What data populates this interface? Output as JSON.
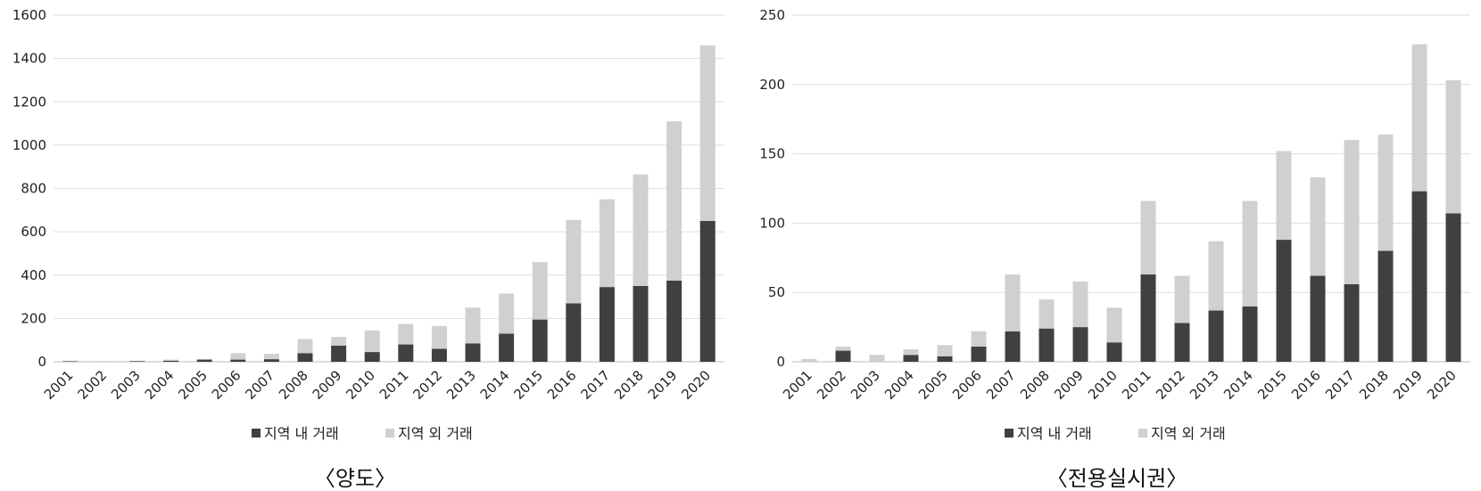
{
  "chart_data": [
    {
      "type": "bar",
      "stacked": true,
      "title": "〈양도〉",
      "categories": [
        "2001",
        "2002",
        "2003",
        "2004",
        "2005",
        "2006",
        "2007",
        "2008",
        "2009",
        "2010",
        "2011",
        "2012",
        "2013",
        "2014",
        "2015",
        "2016",
        "2017",
        "2018",
        "2019",
        "2020"
      ],
      "series": [
        {
          "name": "지역 내 거래",
          "color": "#404040",
          "values": [
            2,
            1,
            3,
            5,
            10,
            10,
            12,
            40,
            75,
            45,
            80,
            60,
            85,
            130,
            195,
            270,
            345,
            350,
            375,
            650
          ]
        },
        {
          "name": "지역 외 거래",
          "color": "#d0d0d0",
          "values": [
            3,
            1,
            2,
            5,
            3,
            30,
            25,
            65,
            40,
            100,
            95,
            105,
            165,
            185,
            265,
            385,
            405,
            515,
            735,
            810
          ]
        }
      ],
      "ylim": [
        0,
        1600
      ],
      "yticks": [
        0,
        200,
        400,
        600,
        800,
        1000,
        1200,
        1400,
        1600
      ],
      "grid": true,
      "legend": "bottom"
    },
    {
      "type": "bar",
      "stacked": true,
      "title": "〈전용실시권〉",
      "categories": [
        "2001",
        "2002",
        "2003",
        "2004",
        "2005",
        "2006",
        "2007",
        "2008",
        "2009",
        "2010",
        "2011",
        "2012",
        "2013",
        "2014",
        "2015",
        "2016",
        "2017",
        "2018",
        "2019",
        "2020"
      ],
      "series": [
        {
          "name": "지역 내 거래",
          "color": "#404040",
          "values": [
            0,
            8,
            0,
            5,
            4,
            11,
            22,
            24,
            25,
            14,
            63,
            28,
            37,
            40,
            88,
            62,
            56,
            80,
            123,
            107
          ]
        },
        {
          "name": "지역 외 거래",
          "color": "#d0d0d0",
          "values": [
            2,
            3,
            5,
            4,
            8,
            11,
            41,
            21,
            33,
            25,
            53,
            34,
            50,
            76,
            64,
            71,
            104,
            84,
            106,
            96
          ]
        }
      ],
      "ylim": [
        0,
        250
      ],
      "yticks": [
        0,
        50,
        100,
        150,
        200,
        250
      ],
      "grid": true,
      "legend": "bottom"
    }
  ]
}
